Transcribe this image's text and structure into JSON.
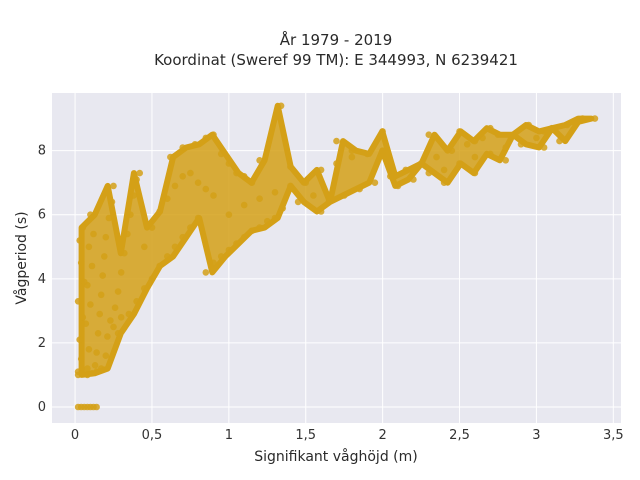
{
  "chart_data": {
    "type": "scatter",
    "title": "År 1979 - 2019",
    "subtitle": "Koordinat (Sweref 99 TM): E 344993, N 6239421",
    "xlabel": "Signifikant våghöjd (m)",
    "ylabel": "Vågperiod (s)",
    "xlim": [
      -0.15,
      3.55
    ],
    "ylim": [
      -0.5,
      9.8
    ],
    "x_ticks": [
      0,
      0.5,
      1,
      1.5,
      2,
      2.5,
      3,
      3.5
    ],
    "x_tick_labels": [
      "0",
      "0,5",
      "1",
      "1,5",
      "2",
      "2,5",
      "3",
      "3,5"
    ],
    "y_ticks": [
      0,
      2,
      4,
      6,
      8
    ],
    "y_tick_labels": [
      "0",
      "2",
      "4",
      "6",
      "8"
    ],
    "grid": true,
    "marker_color": "#D4A017",
    "plot_background": "#E8E8F0",
    "series": [
      {
        "points": [
          [
            0.02,
            1.1
          ],
          [
            0.04,
            1.5
          ],
          [
            0.03,
            2.1
          ],
          [
            0.05,
            2.8
          ],
          [
            0.02,
            3.3
          ],
          [
            0.06,
            3.9
          ],
          [
            0.04,
            4.5
          ],
          [
            0.03,
            5.2
          ],
          [
            0.05,
            5.6
          ],
          [
            0.08,
            1.2
          ],
          [
            0.09,
            1.8
          ],
          [
            0.07,
            2.6
          ],
          [
            0.1,
            3.2
          ],
          [
            0.08,
            3.8
          ],
          [
            0.11,
            4.4
          ],
          [
            0.09,
            5.0
          ],
          [
            0.12,
            5.4
          ],
          [
            0.1,
            6.0
          ],
          [
            0.13,
            1.3
          ],
          [
            0.14,
            1.7
          ],
          [
            0.15,
            2.3
          ],
          [
            0.16,
            2.9
          ],
          [
            0.17,
            3.5
          ],
          [
            0.18,
            4.1
          ],
          [
            0.19,
            4.7
          ],
          [
            0.2,
            5.3
          ],
          [
            0.22,
            5.9
          ],
          [
            0.24,
            6.4
          ],
          [
            0.25,
            6.9
          ],
          [
            0.21,
            2.2
          ],
          [
            0.23,
            2.7
          ],
          [
            0.26,
            3.1
          ],
          [
            0.28,
            3.6
          ],
          [
            0.3,
            4.2
          ],
          [
            0.32,
            4.8
          ],
          [
            0.34,
            5.4
          ],
          [
            0.36,
            6.0
          ],
          [
            0.38,
            6.6
          ],
          [
            0.4,
            7.1
          ],
          [
            0.42,
            7.3
          ],
          [
            0.35,
            2.9
          ],
          [
            0.4,
            3.3
          ],
          [
            0.45,
            3.7
          ],
          [
            0.5,
            4.0
          ],
          [
            0.55,
            4.4
          ],
          [
            0.6,
            4.7
          ],
          [
            0.65,
            5.0
          ],
          [
            0.7,
            5.3
          ],
          [
            0.75,
            5.6
          ],
          [
            0.8,
            5.9
          ],
          [
            0.45,
            5.0
          ],
          [
            0.5,
            5.6
          ],
          [
            0.55,
            6.1
          ],
          [
            0.6,
            6.5
          ],
          [
            0.65,
            6.9
          ],
          [
            0.7,
            7.2
          ],
          [
            0.75,
            7.3
          ],
          [
            0.8,
            7.0
          ],
          [
            0.85,
            6.8
          ],
          [
            0.9,
            6.6
          ],
          [
            0.62,
            7.8
          ],
          [
            0.7,
            8.1
          ],
          [
            0.78,
            8.2
          ],
          [
            0.85,
            8.4
          ],
          [
            0.9,
            8.5
          ],
          [
            0.95,
            7.9
          ],
          [
            1.0,
            7.6
          ],
          [
            1.05,
            7.3
          ],
          [
            1.1,
            7.2
          ],
          [
            1.15,
            7.0
          ],
          [
            0.85,
            4.2
          ],
          [
            0.9,
            4.5
          ],
          [
            0.95,
            4.7
          ],
          [
            1.0,
            4.9
          ],
          [
            1.05,
            5.1
          ],
          [
            1.1,
            5.3
          ],
          [
            1.15,
            5.5
          ],
          [
            1.2,
            5.6
          ],
          [
            1.25,
            5.8
          ],
          [
            1.3,
            5.9
          ],
          [
            1.0,
            6.0
          ],
          [
            1.1,
            6.3
          ],
          [
            1.2,
            6.5
          ],
          [
            1.3,
            6.7
          ],
          [
            1.4,
            6.9
          ],
          [
            1.5,
            7.0
          ],
          [
            1.35,
            6.2
          ],
          [
            1.45,
            6.4
          ],
          [
            1.55,
            6.6
          ],
          [
            1.6,
            6.1
          ],
          [
            1.34,
            9.4
          ],
          [
            1.2,
            7.7
          ],
          [
            1.4,
            7.5
          ],
          [
            1.6,
            7.4
          ],
          [
            1.7,
            7.6
          ],
          [
            1.8,
            7.8
          ],
          [
            1.9,
            7.9
          ],
          [
            2.0,
            8.0
          ],
          [
            1.65,
            6.4
          ],
          [
            1.75,
            6.6
          ],
          [
            1.85,
            6.8
          ],
          [
            1.95,
            7.0
          ],
          [
            2.05,
            7.2
          ],
          [
            2.15,
            7.4
          ],
          [
            2.25,
            7.6
          ],
          [
            2.35,
            7.8
          ],
          [
            2.45,
            8.0
          ],
          [
            2.55,
            8.2
          ],
          [
            2.65,
            8.4
          ],
          [
            2.75,
            8.5
          ],
          [
            2.1,
            6.9
          ],
          [
            2.2,
            7.1
          ],
          [
            2.3,
            7.3
          ],
          [
            2.4,
            7.4
          ],
          [
            2.5,
            7.6
          ],
          [
            2.6,
            7.8
          ],
          [
            2.7,
            7.9
          ],
          [
            2.8,
            8.1
          ],
          [
            2.9,
            8.2
          ],
          [
            3.0,
            8.4
          ],
          [
            2.5,
            8.6
          ],
          [
            2.7,
            8.7
          ],
          [
            2.85,
            8.5
          ],
          [
            2.95,
            8.8
          ],
          [
            3.05,
            8.6
          ],
          [
            3.1,
            8.7
          ],
          [
            3.2,
            8.8
          ],
          [
            3.25,
            8.9
          ],
          [
            3.3,
            9.0
          ],
          [
            3.38,
            9.0
          ],
          [
            2.0,
            8.6
          ],
          [
            2.3,
            8.5
          ],
          [
            2.6,
            8.3
          ],
          [
            1.7,
            8.3
          ],
          [
            1.8,
            8.0
          ],
          [
            2.4,
            7.0
          ],
          [
            2.6,
            7.3
          ],
          [
            2.8,
            7.7
          ],
          [
            3.05,
            8.1
          ],
          [
            3.15,
            8.3
          ],
          [
            0.02,
            0.0
          ],
          [
            0.04,
            0.0
          ],
          [
            0.06,
            0.0
          ],
          [
            0.08,
            0.0
          ],
          [
            0.1,
            0.0
          ],
          [
            0.12,
            0.0
          ],
          [
            0.14,
            0.0
          ],
          [
            0.02,
            1.0
          ],
          [
            0.05,
            1.05
          ],
          [
            0.08,
            1.0
          ],
          [
            0.11,
            1.05
          ],
          [
            0.14,
            1.1
          ],
          [
            0.17,
            1.2
          ],
          [
            0.2,
            1.6
          ],
          [
            0.25,
            2.5
          ],
          [
            0.3,
            2.8
          ],
          [
            0.28,
            2.3
          ]
        ]
      }
    ]
  }
}
